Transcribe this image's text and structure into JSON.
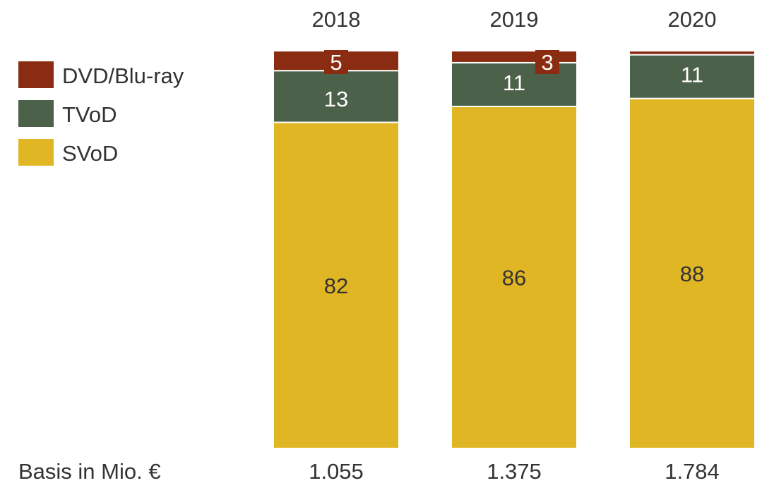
{
  "chart_data": {
    "type": "bar",
    "stacked": true,
    "normalized_percent": true,
    "categories": [
      "2018",
      "2019",
      "2020"
    ],
    "series": [
      {
        "name": "SVoD",
        "color": "#E0B625",
        "values": [
          82,
          86,
          88
        ]
      },
      {
        "name": "TVoD",
        "color": "#4B6149",
        "values": [
          13,
          11,
          11
        ]
      },
      {
        "name": "DVD/Blu-ray",
        "color": "#8A2C11",
        "values": [
          5,
          3,
          1
        ]
      }
    ],
    "data_labels": [
      [
        "82",
        "86",
        "88"
      ],
      [
        "13",
        "11",
        "11"
      ],
      [
        "5",
        "3",
        ""
      ]
    ],
    "legend": {
      "position": "top-left",
      "order": [
        "DVD/Blu-ray",
        "TVoD",
        "SVoD"
      ]
    },
    "basis": {
      "label": "Basis in Mio. €",
      "values": [
        "1.055",
        "1.375",
        "1.784"
      ]
    },
    "ylim": [
      0,
      100
    ],
    "grid": false,
    "title": "",
    "xlabel": "",
    "ylabel": ""
  }
}
